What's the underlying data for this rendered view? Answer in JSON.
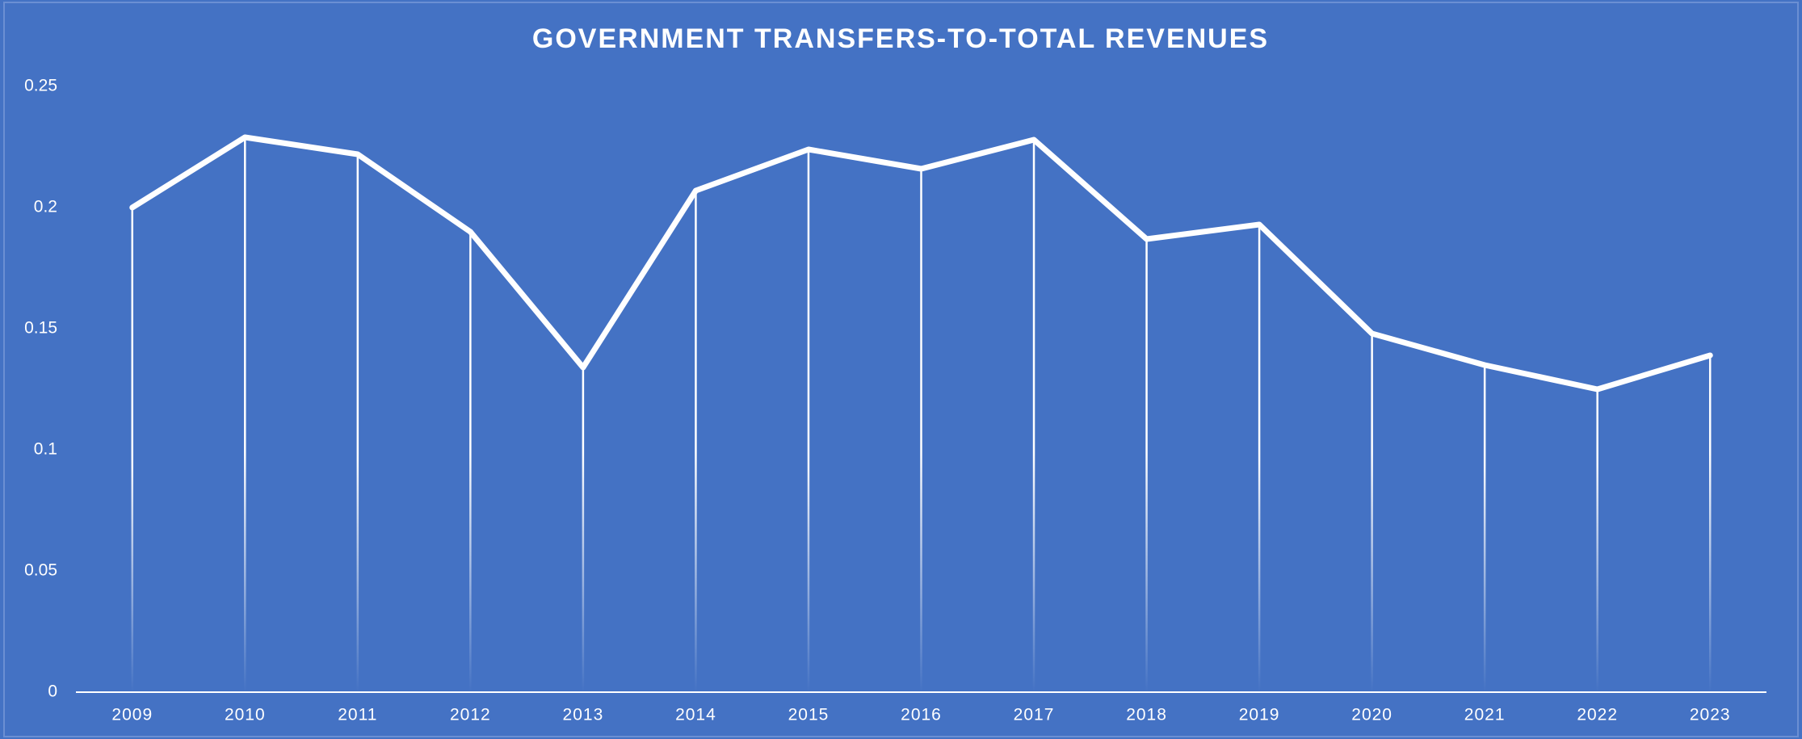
{
  "chart_data": {
    "type": "line",
    "title": "GOVERNMENT TRANSFERS-TO-TOTAL REVENUES",
    "categories": [
      "2009",
      "2010",
      "2011",
      "2012",
      "2013",
      "2014",
      "2015",
      "2016",
      "2017",
      "2018",
      "2019",
      "2020",
      "2021",
      "2022",
      "2023"
    ],
    "values": [
      0.2,
      0.229,
      0.222,
      0.19,
      0.134,
      0.207,
      0.224,
      0.216,
      0.228,
      0.187,
      0.193,
      0.148,
      0.135,
      0.125,
      0.139
    ],
    "color": "#ffffff",
    "background": "#4472c4",
    "drop_lines": true,
    "ylim": [
      0,
      0.25
    ],
    "yticks": [
      0,
      0.05,
      0.1,
      0.15,
      0.2,
      0.25
    ],
    "grid": false
  }
}
